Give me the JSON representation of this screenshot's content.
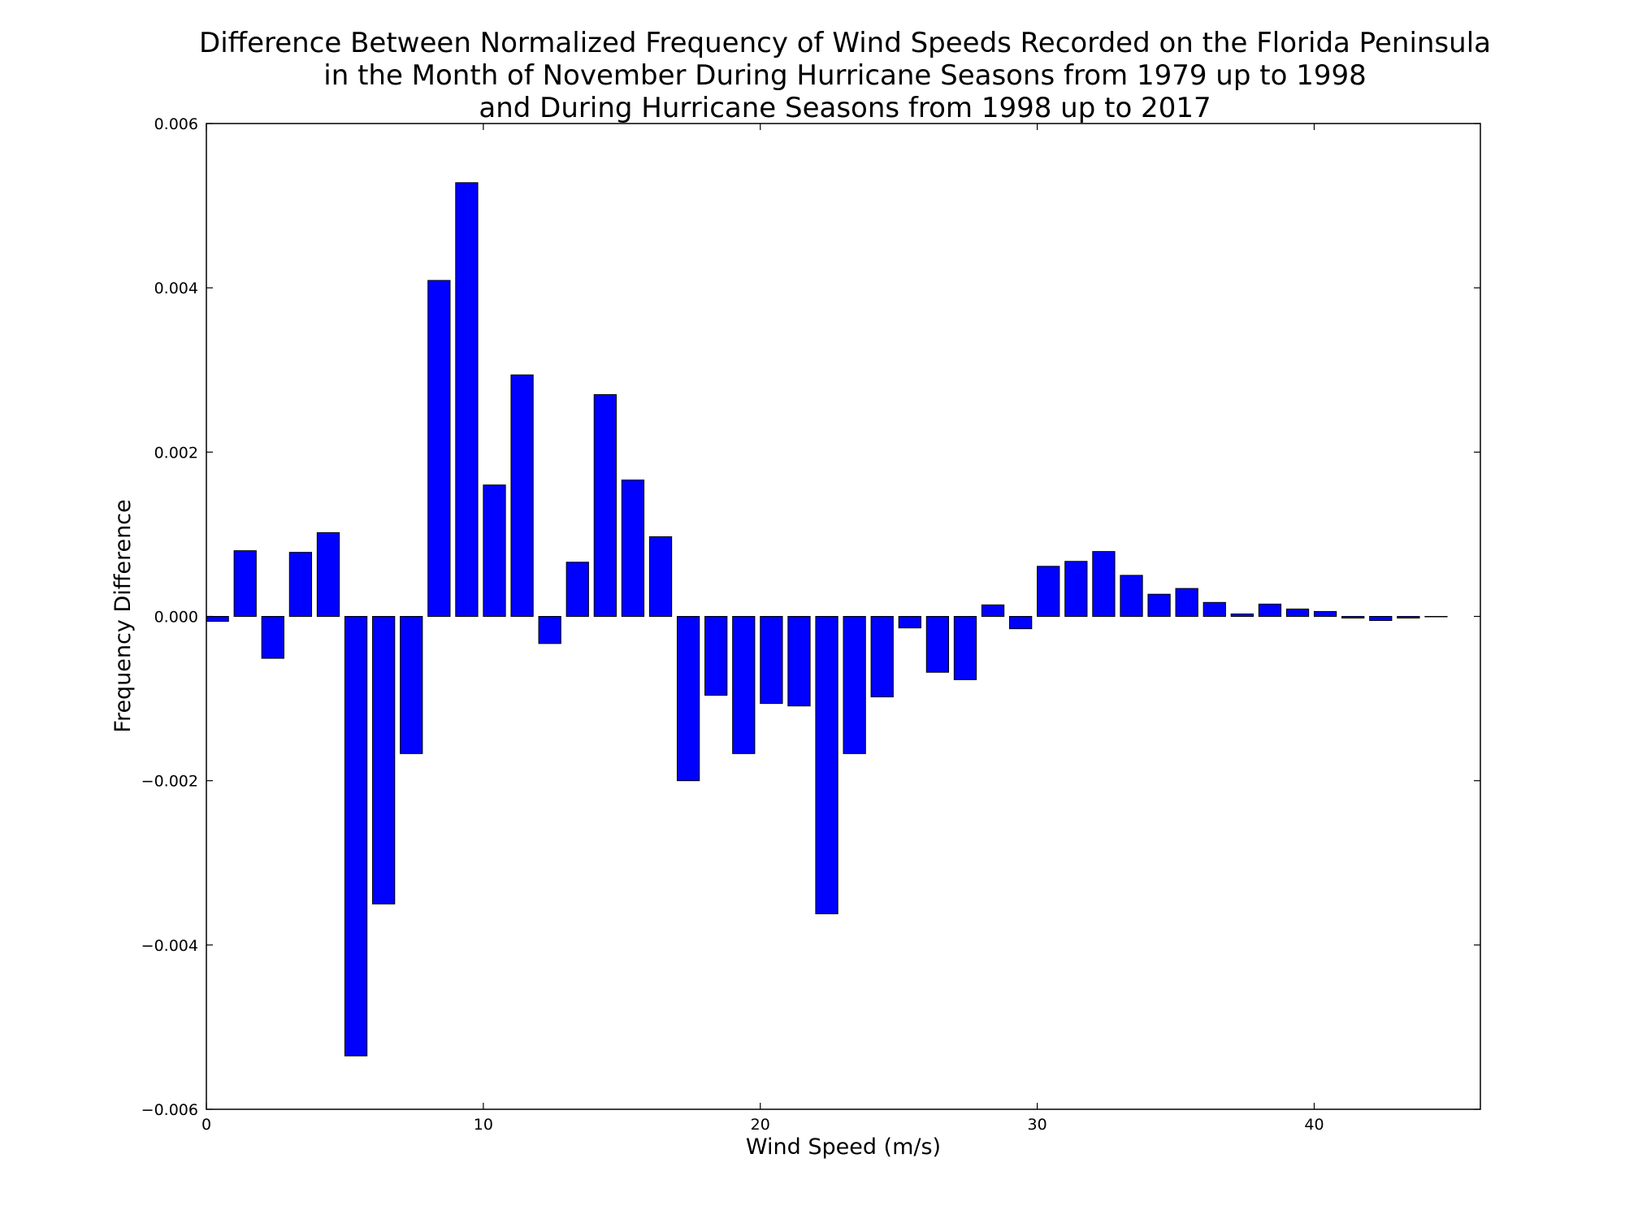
{
  "chart_data": {
    "type": "bar",
    "title_lines": [
      "Difference Between Normalized Frequency of Wind Speeds Recorded on the Florida Peninsula",
      "in the Month of November During Hurricane Seasons from 1979 up to 1998",
      "and During Hurricane Seasons from 1998 up to 2017"
    ],
    "xlabel": "Wind Speed (m/s)",
    "ylabel": "Frequency Difference",
    "xlim": [
      0,
      46
    ],
    "ylim": [
      -0.006,
      0.006
    ],
    "x_ticks": [
      0,
      10,
      20,
      30,
      40
    ],
    "x_tick_labels": [
      "0",
      "10",
      "20",
      "30",
      "40"
    ],
    "y_ticks": [
      -0.006,
      -0.004,
      -0.002,
      0.0,
      0.002,
      0.004,
      0.006
    ],
    "y_tick_labels": [
      "−0.006",
      "−0.004",
      "−0.002",
      "0.000",
      "0.002",
      "0.004",
      "0.006"
    ],
    "bar_color": "#0000ff",
    "bar_edge_color": "#000000",
    "bar_width": 0.8,
    "x": [
      0,
      1,
      2,
      3,
      4,
      5,
      6,
      7,
      8,
      9,
      10,
      11,
      12,
      13,
      14,
      15,
      16,
      17,
      18,
      19,
      20,
      21,
      22,
      23,
      24,
      25,
      26,
      27,
      28,
      29,
      30,
      31,
      32,
      33,
      34,
      35,
      36,
      37,
      38,
      39,
      40,
      41,
      42,
      43,
      44
    ],
    "values": [
      -6e-05,
      0.0008,
      -0.00051,
      0.00078,
      0.00102,
      -0.00535,
      -0.0035,
      -0.00167,
      0.00409,
      0.00528,
      0.0016,
      0.00294,
      -0.00033,
      0.00066,
      0.0027,
      0.00166,
      0.00097,
      -0.002,
      -0.00096,
      -0.00167,
      -0.00106,
      -0.00109,
      -0.00362,
      -0.00167,
      -0.00098,
      -0.00014,
      -0.00068,
      -0.00077,
      0.00014,
      -0.00015,
      0.00061,
      0.00067,
      0.00079,
      0.0005,
      0.00027,
      0.00034,
      0.00017,
      3e-05,
      0.00015,
      9e-05,
      6e-05,
      -2e-05,
      -5e-05,
      -2e-05,
      0.0
    ]
  }
}
